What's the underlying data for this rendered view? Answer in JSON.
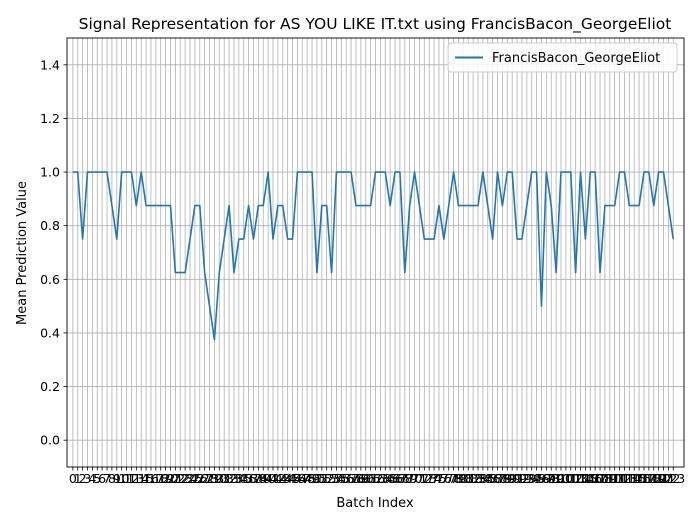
{
  "chart_data": {
    "type": "line",
    "title": "Signal Representation for AS YOU LIKE IT.txt using FrancisBacon_GeorgeEliot",
    "xlabel": "Batch Index",
    "ylabel": "Mean Prediction Value",
    "ylim": [
      -0.1,
      1.5
    ],
    "xlim": [
      -1.2,
      125.2
    ],
    "yticks": [
      0.0,
      0.2,
      0.4,
      0.6,
      0.8,
      1.0,
      1.2,
      1.4
    ],
    "ytick_labels": [
      "0.0",
      "0.2",
      "0.4",
      "0.6",
      "0.8",
      "1.0",
      "1.2",
      "1.4"
    ],
    "grid": true,
    "legend_position": "upper right",
    "color": "#1f77b4",
    "series": [
      {
        "name": "FrancisBacon_GeorgeEliot",
        "x": [
          0,
          1,
          2,
          3,
          4,
          5,
          6,
          7,
          8,
          9,
          10,
          11,
          12,
          13,
          14,
          15,
          16,
          17,
          18,
          19,
          20,
          21,
          22,
          23,
          24,
          25,
          26,
          27,
          28,
          29,
          30,
          31,
          32,
          33,
          34,
          35,
          36,
          37,
          38,
          39,
          40,
          41,
          42,
          43,
          44,
          45,
          46,
          47,
          48,
          49,
          50,
          51,
          52,
          53,
          54,
          55,
          56,
          57,
          58,
          59,
          60,
          61,
          62,
          63,
          64,
          65,
          66,
          67,
          68,
          69,
          70,
          71,
          72,
          73,
          74,
          75,
          76,
          77,
          78,
          79,
          80,
          81,
          82,
          83,
          84,
          85,
          86,
          87,
          88,
          89,
          90,
          91,
          92,
          93,
          94,
          95,
          96,
          97,
          98,
          99,
          100,
          101,
          102,
          103,
          104,
          105,
          106,
          107,
          108,
          109,
          110,
          111,
          112,
          113,
          114,
          115,
          116,
          117,
          118,
          119,
          120,
          121,
          122,
          123
        ],
        "y": [
          1.0,
          1.0,
          0.75,
          1.0,
          1.0,
          1.0,
          1.0,
          1.0,
          0.875,
          0.75,
          1.0,
          1.0,
          1.0,
          0.875,
          1.0,
          0.875,
          0.875,
          0.875,
          0.875,
          0.875,
          0.875,
          0.625,
          0.625,
          0.625,
          0.75,
          0.875,
          0.875,
          0.625,
          0.5,
          0.375,
          0.625,
          0.75,
          0.875,
          0.625,
          0.75,
          0.75,
          0.875,
          0.75,
          0.875,
          0.875,
          1.0,
          0.75,
          0.875,
          0.875,
          0.75,
          0.75,
          1.0,
          1.0,
          1.0,
          1.0,
          0.625,
          0.875,
          0.875,
          0.625,
          1.0,
          1.0,
          1.0,
          1.0,
          0.875,
          0.875,
          0.875,
          0.875,
          1.0,
          1.0,
          1.0,
          0.875,
          1.0,
          1.0,
          0.625,
          0.875,
          1.0,
          0.875,
          0.75,
          0.75,
          0.75,
          0.875,
          0.75,
          0.875,
          1.0,
          0.875,
          0.875,
          0.875,
          0.875,
          0.875,
          1.0,
          0.875,
          0.75,
          1.0,
          0.875,
          1.0,
          1.0,
          0.75,
          0.75,
          0.875,
          1.0,
          1.0,
          0.5,
          1.0,
          0.875,
          0.625,
          1.0,
          1.0,
          1.0,
          0.625,
          1.0,
          0.75,
          1.0,
          1.0,
          0.625,
          0.875,
          0.875,
          0.875,
          1.0,
          1.0,
          0.875,
          0.875,
          0.875,
          1.0,
          1.0,
          0.875,
          1.0,
          1.0,
          0.875,
          0.75
        ]
      }
    ],
    "xtick_labels": [
      "0",
      "1",
      "2",
      "3",
      "4",
      "5",
      "6",
      "7",
      "8",
      "9",
      "10",
      "11",
      "12",
      "13",
      "14",
      "15",
      "16",
      "17",
      "18",
      "19",
      "20",
      "21",
      "22",
      "23",
      "24",
      "25",
      "26",
      "27",
      "28",
      "29",
      "30",
      "31",
      "32",
      "33",
      "34",
      "35",
      "36",
      "37",
      "38",
      "39",
      "40",
      "41",
      "42",
      "43",
      "44",
      "45",
      "46",
      "47",
      "48",
      "49",
      "50",
      "51",
      "52",
      "53",
      "54",
      "55",
      "56",
      "57",
      "58",
      "59",
      "60",
      "61",
      "62",
      "63",
      "64",
      "65",
      "66",
      "67",
      "68",
      "69",
      "70",
      "71",
      "72",
      "73",
      "74",
      "75",
      "76",
      "77",
      "78",
      "79",
      "80",
      "81",
      "82",
      "83",
      "84",
      "85",
      "86",
      "87",
      "88",
      "89",
      "90",
      "91",
      "92",
      "93",
      "94",
      "95",
      "96",
      "97",
      "98",
      "99",
      "100",
      "101",
      "102",
      "103",
      "104",
      "105",
      "106",
      "107",
      "108",
      "109",
      "110",
      "111",
      "112",
      "113",
      "114",
      "115",
      "116",
      "117",
      "118",
      "119",
      "120",
      "121",
      "122",
      "123"
    ]
  }
}
